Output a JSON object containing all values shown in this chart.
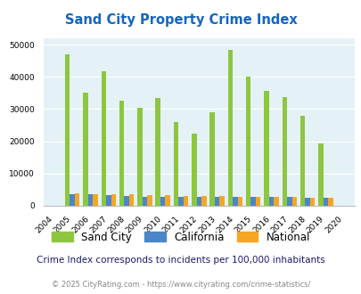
{
  "title": "Sand City Property Crime Index",
  "subtitle": "Crime Index corresponds to incidents per 100,000 inhabitants",
  "footer": "© 2025 CityRating.com - https://www.cityrating.com/crime-statistics/",
  "years": [
    2004,
    2005,
    2006,
    2007,
    2008,
    2009,
    2010,
    2011,
    2012,
    2013,
    2014,
    2015,
    2016,
    2017,
    2018,
    2019,
    2020
  ],
  "sand_city": [
    0,
    47000,
    35000,
    41700,
    32500,
    30500,
    33500,
    26000,
    22300,
    29000,
    48500,
    40100,
    35700,
    33800,
    28000,
    19300,
    0
  ],
  "california": [
    0,
    3700,
    3600,
    3200,
    3100,
    2900,
    2900,
    2900,
    2900,
    2900,
    2900,
    2800,
    2800,
    2700,
    2500,
    2400,
    0
  ],
  "national": [
    0,
    3800,
    3600,
    3600,
    3600,
    3400,
    3300,
    3100,
    3100,
    3100,
    2900,
    2900,
    2800,
    2800,
    2500,
    2400,
    0
  ],
  "color_sand_city": "#8dc63f",
  "color_california": "#4a86c8",
  "color_national": "#f5a623",
  "bg_color": "#e4f2f7",
  "title_color": "#1565c0",
  "subtitle_color": "#1a1a6e",
  "footer_color": "#888888",
  "footer_link_color": "#3388cc",
  "ylim": [
    0,
    52000
  ],
  "yticks": [
    0,
    10000,
    20000,
    30000,
    40000,
    50000
  ],
  "bar_width": 0.27
}
